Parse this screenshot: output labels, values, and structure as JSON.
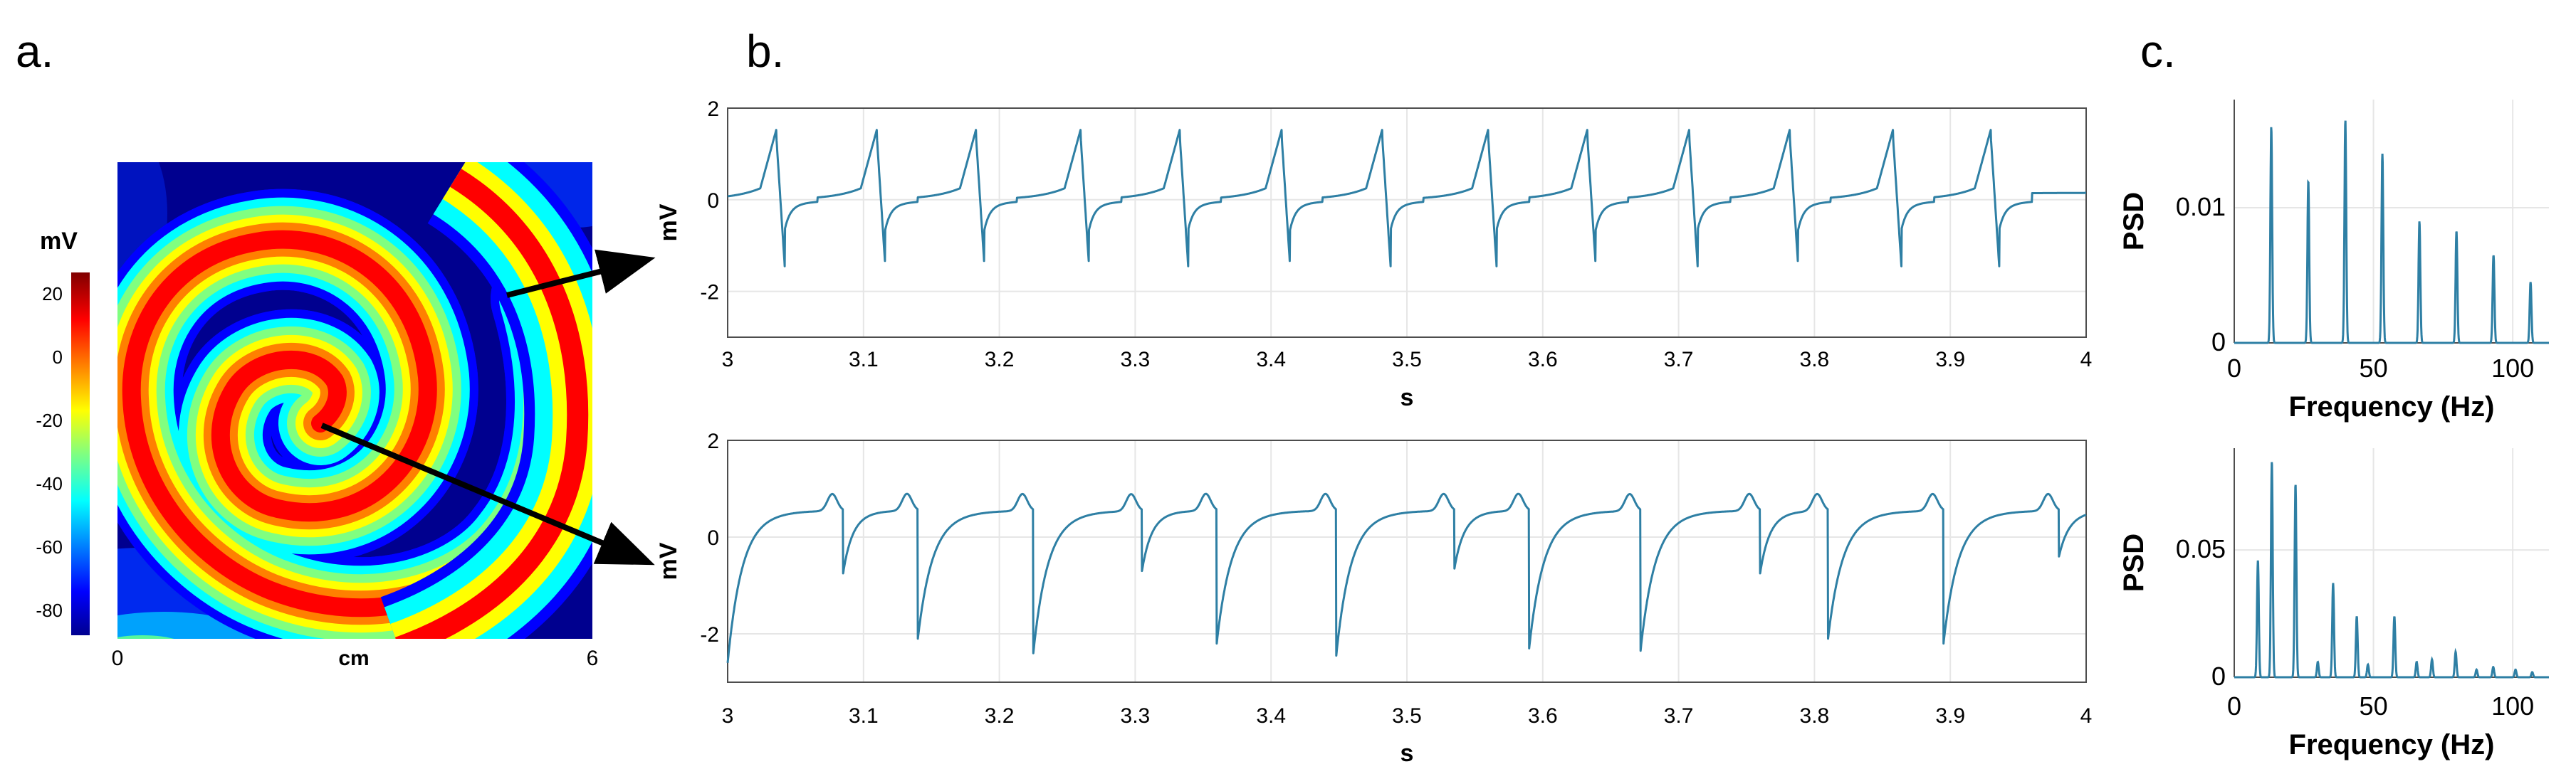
{
  "panels": {
    "a": "a.",
    "b": "b.",
    "c": "c."
  },
  "colormap_panel": {
    "colorbar_title": "mV",
    "colorbar_ticks": [
      "20",
      "0",
      "-20",
      "-40",
      "-60",
      "-80"
    ],
    "colorbar_range": [
      -88,
      27
    ],
    "x_ticks": [
      "0",
      "6"
    ],
    "xlabel": "cm"
  },
  "colors": {
    "trace": "#2e7fa4",
    "arrow": "#000000"
  },
  "chart_data": [
    {
      "id": "top-trace",
      "type": "line",
      "title": "",
      "xlabel": "s",
      "ylabel": "mV",
      "xlim": [
        3,
        4
      ],
      "ylim": [
        -3,
        2
      ],
      "xticks": [
        "3",
        "3.1",
        "3.2",
        "3.3",
        "3.4",
        "3.5",
        "3.6",
        "3.7",
        "3.8",
        "3.9",
        "4"
      ],
      "yticks": [
        "2",
        "0",
        "-2"
      ],
      "grid": true,
      "beat_times_s": [
        3.036,
        3.11,
        3.183,
        3.26,
        3.333,
        3.408,
        3.482,
        3.56,
        3.633,
        3.708,
        3.782,
        3.858,
        3.93
      ],
      "peak_mV": 1.3,
      "trough_mV": -1.45
    },
    {
      "id": "bottom-trace",
      "type": "line",
      "title": "",
      "xlabel": "s",
      "ylabel": "mV",
      "xlim": [
        3,
        4
      ],
      "ylim": [
        -3,
        2
      ],
      "xticks": [
        "3",
        "3.1",
        "3.2",
        "3.3",
        "3.4",
        "3.5",
        "3.6",
        "3.7",
        "3.8",
        "3.9",
        "4"
      ],
      "yticks": [
        "2",
        "0",
        "-2"
      ],
      "grid": true,
      "major_beats": [
        {
          "t": 3.0,
          "min": -2.6
        },
        {
          "t": 3.14,
          "min": -2.1
        },
        {
          "t": 3.225,
          "min": -2.4
        },
        {
          "t": 3.36,
          "min": -2.2
        },
        {
          "t": 3.448,
          "min": -2.45
        },
        {
          "t": 3.59,
          "min": -2.3
        },
        {
          "t": 3.672,
          "min": -2.35
        },
        {
          "t": 3.81,
          "min": -2.1
        },
        {
          "t": 3.895,
          "min": -2.2
        }
      ],
      "minor_beats": [
        {
          "t": 3.085,
          "min": -0.75
        },
        {
          "t": 3.305,
          "min": -0.7
        },
        {
          "t": 3.535,
          "min": -0.65
        },
        {
          "t": 3.76,
          "min": -0.75
        },
        {
          "t": 3.98,
          "min": -0.4
        }
      ]
    },
    {
      "id": "top-psd",
      "type": "line",
      "title": "",
      "xlabel": "Frequency (Hz)",
      "ylabel": "PSD",
      "xlim": [
        0,
        113
      ],
      "ylim": [
        0,
        0.018
      ],
      "xticks": [
        "0",
        "50",
        "100"
      ],
      "yticks": [
        "0",
        "0.01"
      ],
      "grid": true,
      "peaks": [
        {
          "f": 13.3,
          "psd": 0.016
        },
        {
          "f": 26.6,
          "psd": 0.012
        },
        {
          "f": 39.9,
          "psd": 0.0165
        },
        {
          "f": 53.2,
          "psd": 0.014
        },
        {
          "f": 66.5,
          "psd": 0.009
        },
        {
          "f": 79.8,
          "psd": 0.0083
        },
        {
          "f": 93.1,
          "psd": 0.0065
        },
        {
          "f": 106.4,
          "psd": 0.0045
        }
      ]
    },
    {
      "id": "bottom-psd",
      "type": "line",
      "title": "",
      "xlabel": "Frequency (Hz)",
      "ylabel": "PSD",
      "xlim": [
        0,
        113
      ],
      "ylim": [
        0,
        0.09
      ],
      "xticks": [
        "0",
        "50",
        "100"
      ],
      "yticks": [
        "0",
        "0.05"
      ],
      "grid": true,
      "peaks": [
        {
          "f": 8.5,
          "psd": 0.046
        },
        {
          "f": 13.5,
          "psd": 0.085
        },
        {
          "f": 22,
          "psd": 0.076
        },
        {
          "f": 30,
          "psd": 0.006
        },
        {
          "f": 35.5,
          "psd": 0.037
        },
        {
          "f": 44,
          "psd": 0.024
        },
        {
          "f": 48,
          "psd": 0.005
        },
        {
          "f": 57.5,
          "psd": 0.024
        },
        {
          "f": 65.5,
          "psd": 0.006
        },
        {
          "f": 71,
          "psd": 0.007
        },
        {
          "f": 79.5,
          "psd": 0.01
        },
        {
          "f": 87,
          "psd": 0.003
        },
        {
          "f": 93,
          "psd": 0.004
        },
        {
          "f": 101,
          "psd": 0.003
        },
        {
          "f": 107,
          "psd": 0.002
        }
      ]
    }
  ]
}
